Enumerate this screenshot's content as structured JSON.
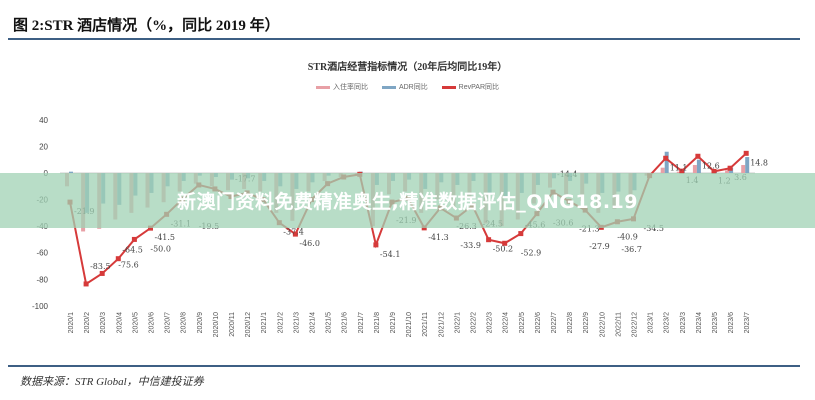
{
  "figure_title": "图 2:STR 酒店情况（%，同比 2019 年）",
  "source": "数据来源：STR Global，中信建投证券",
  "watermark": "新澳门资料免费精准奥生,精准数据评估_QNG18.19",
  "colors": {
    "occupancy": "#e8a0a6",
    "adr": "#7fa6c4",
    "revpar": "#d63a3a",
    "trend": "#b5a08c"
  },
  "chart_data": {
    "type": "bar",
    "title": "STR酒店经营指标情况（20年后均同比19年）",
    "legend": [
      "入住率同比",
      "ADR同比",
      "RevPAR同比"
    ],
    "legend_position": "top",
    "ylim": [
      -100,
      40
    ],
    "yticks": [
      40,
      20,
      0,
      -20,
      -40,
      -60,
      -80,
      -100
    ],
    "categories": [
      "2020/1",
      "2020/2",
      "2020/3",
      "2020/4",
      "2020/5",
      "2020/6",
      "2020/7",
      "2020/8",
      "2020/9",
      "2020/10",
      "2020/11",
      "2020/12",
      "2021/1",
      "2021/2",
      "2021/3",
      "2021/4",
      "2021/5",
      "2021/6",
      "2021/7",
      "2021/8",
      "2021/9",
      "2021/10",
      "2021/11",
      "2021/12",
      "2022/1",
      "2022/2",
      "2022/3",
      "2022/4",
      "2022/5",
      "2022/6",
      "2022/7",
      "2022/8",
      "2022/9",
      "2022/10",
      "2022/11",
      "2022/12",
      "2023/1",
      "2023/2",
      "2023/3",
      "2023/4",
      "2023/5",
      "2023/6",
      "2023/7"
    ],
    "series": [
      {
        "name": "入住率同比",
        "type": "bar",
        "values": [
          -10,
          -44,
          -42,
          -35,
          -30,
          -26,
          -22,
          -14,
          -8,
          -10,
          -13,
          -12,
          -14,
          -30,
          -36,
          -14,
          -6,
          -3,
          -2,
          -40,
          -16,
          -14,
          -30,
          -20,
          -26,
          -19,
          -38,
          -40,
          -35,
          -23,
          -11,
          -16,
          -21,
          -30,
          -27,
          -25,
          -2,
          4,
          1,
          6,
          0,
          2,
          6
        ]
      },
      {
        "name": "ADR同比",
        "type": "bar",
        "values": [
          1,
          -30,
          -23,
          -24,
          -17,
          -15,
          -10,
          -6,
          -2,
          -3,
          -5,
          -4,
          -6,
          -10,
          -12,
          -7,
          -2,
          0,
          1,
          -9,
          -6,
          -5,
          -12,
          -7,
          -9,
          -6,
          -16,
          -18,
          -15,
          -9,
          -4,
          -6,
          -8,
          -15,
          -14,
          -13,
          0,
          16,
          3,
          10,
          2,
          4,
          12
        ]
      },
      {
        "name": "RevPAR同比",
        "type": "line",
        "values": [
          -21.9,
          -83.5,
          -75.6,
          -64.5,
          -50.0,
          -41.5,
          -31.1,
          -19.5,
          -9,
          -12,
          -17.7,
          -15,
          -20,
          -37.4,
          -46.0,
          -20,
          -8,
          -3,
          -1,
          -54.1,
          -21.9,
          -19,
          -41.3,
          -26.3,
          -33.9,
          -24.5,
          -50.2,
          -52.9,
          -45.6,
          -30.6,
          -14.4,
          -21.3,
          -27.9,
          -40.9,
          -36.7,
          -34.5,
          -2,
          11.1,
          1.4,
          12.6,
          1.2,
          3.6,
          14.8
        ]
      }
    ]
  }
}
